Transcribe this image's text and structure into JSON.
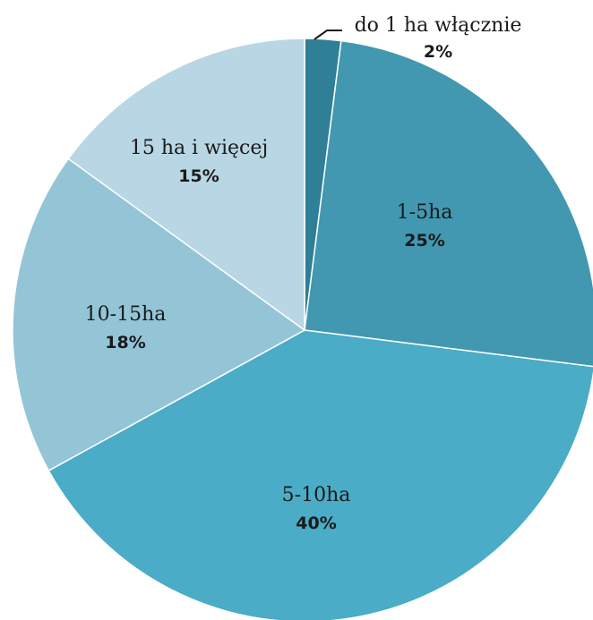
{
  "chart_data": {
    "type": "pie",
    "title": "",
    "slices": [
      {
        "label": "do 1 ha włącznie",
        "value": 2,
        "pct_label": "2%",
        "color": "#2f7f96"
      },
      {
        "label": "1-5ha",
        "value": 25,
        "pct_label": "25%",
        "color": "#4298b0"
      },
      {
        "label": "5-10ha",
        "value": 40,
        "pct_label": "40%",
        "color": "#4aacc6"
      },
      {
        "label": "10-15ha",
        "value": 18,
        "pct_label": "18%",
        "color": "#93c5d7"
      },
      {
        "label": "15 ha i więcej",
        "value": 15,
        "pct_label": "15%",
        "color": "#b8d6e3"
      }
    ],
    "start_angle": "12 o'clock",
    "direction": "clockwise",
    "legend": "none"
  }
}
